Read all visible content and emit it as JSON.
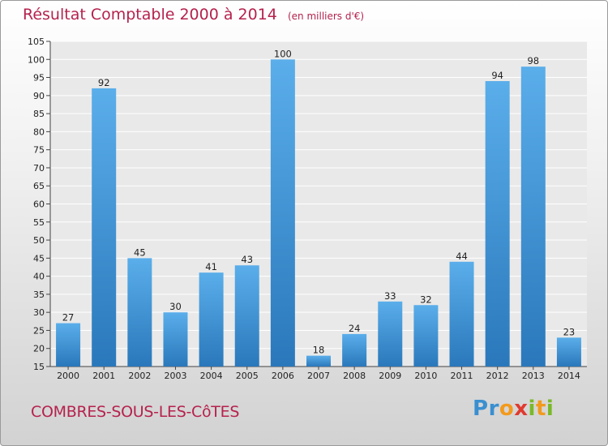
{
  "header": {
    "title": "Résultat Comptable 2000 à 2014",
    "unit": "(en milliers d'€)"
  },
  "footer": {
    "commune": "COMBRES-SOUS-LES-CôTES",
    "brand_letters": [
      {
        "char": "P",
        "color": "#3a8fd0"
      },
      {
        "char": "r",
        "color": "#3a8fd0"
      },
      {
        "char": "o",
        "color": "#f29a1d"
      },
      {
        "char": "x",
        "color": "#e03a2f"
      },
      {
        "char": "i",
        "color": "#79b928"
      },
      {
        "char": "t",
        "color": "#f29a1d"
      },
      {
        "char": "i",
        "color": "#79b928"
      }
    ]
  },
  "colors": {
    "title": "#b5224d",
    "bar_light": "#5aaeea",
    "bar_dark": "#2a78bb"
  },
  "chart_data": {
    "type": "bar",
    "categories": [
      "2000",
      "2001",
      "2002",
      "2003",
      "2004",
      "2005",
      "2006",
      "2007",
      "2008",
      "2009",
      "2010",
      "2011",
      "2012",
      "2013",
      "2014"
    ],
    "values": [
      27,
      92,
      45,
      30,
      41,
      43,
      100,
      18,
      24,
      33,
      32,
      44,
      94,
      98,
      23
    ],
    "ylim": [
      15,
      105
    ],
    "yticks": [
      15,
      20,
      25,
      30,
      35,
      40,
      45,
      50,
      55,
      60,
      65,
      70,
      75,
      80,
      85,
      90,
      95,
      100,
      105
    ],
    "grid": true
  }
}
